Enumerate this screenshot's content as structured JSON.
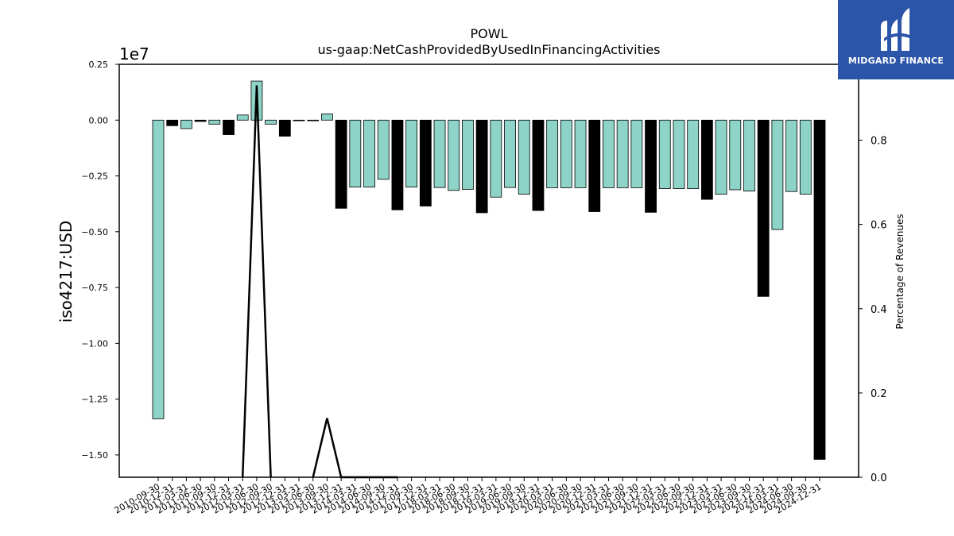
{
  "brand": {
    "name": "MIDGARD FINANCE",
    "accent": "#2b55a8"
  },
  "chart_data": {
    "type": "bar",
    "title": "POWL",
    "subtitle": "us-gaap:NetCashProvidedByUsedInFinancingActivities",
    "ylabel": "iso4217:USD",
    "y2label": "Percentage of Revenues",
    "offset_text": "1e7",
    "ylim": [
      -16000000,
      2500000
    ],
    "y2lim": [
      0,
      0.98
    ],
    "yticks": [
      0.25,
      0.0,
      -0.25,
      -0.5,
      -0.75,
      -1.0,
      -1.25,
      -1.5
    ],
    "ytick_labels": [
      "0.25",
      "0.00",
      "−0.25",
      "−0.50",
      "−0.75",
      "−1.00",
      "−1.25",
      "−1.50"
    ],
    "y2ticks": [
      0.0,
      0.2,
      0.4,
      0.6,
      0.8
    ],
    "y2tick_labels": [
      "0.0",
      "0.2",
      "0.4",
      "0.6",
      "0.8"
    ],
    "bar_colors": {
      "default": "#8dd3c7",
      "fiscal_year_end": "#000000"
    },
    "categories": [
      "2010-09-30",
      "2010-12-31",
      "2011-03-31",
      "2011-06-30",
      "2011-09-30",
      "2011-12-31",
      "2012-03-31",
      "2012-06-30",
      "2012-09-30",
      "2012-12-31",
      "2013-03-31",
      "2013-06-30",
      "2013-09-30",
      "2013-12-31",
      "2014-03-31",
      "2014-06-30",
      "2014-09-30",
      "2014-12-31",
      "2017-09-30",
      "2017-12-31",
      "2018-03-31",
      "2018-06-30",
      "2018-09-30",
      "2018-12-31",
      "2019-03-31",
      "2019-06-30",
      "2019-09-30",
      "2019-12-31",
      "2020-03-31",
      "2020-06-30",
      "2020-09-30",
      "2020-12-31",
      "2021-03-31",
      "2021-06-30",
      "2021-09-30",
      "2021-12-31",
      "2022-03-31",
      "2022-06-30",
      "2022-09-30",
      "2022-12-31",
      "2023-03-31",
      "2023-06-30",
      "2023-09-30",
      "2023-12-31",
      "2024-03-31",
      "2024-06-30",
      "2024-09-30",
      "2024-12-31"
    ],
    "values": [
      -13380000,
      -250000,
      -380000,
      -60000,
      -180000,
      -650000,
      230000,
      1750000,
      -180000,
      -720000,
      -30000,
      -30000,
      280000,
      -3950000,
      -3000000,
      -3000000,
      -2650000,
      -4020000,
      -3000000,
      -3850000,
      -3020000,
      -3150000,
      -3100000,
      -4150000,
      -3450000,
      -3020000,
      -3320000,
      -4050000,
      -3030000,
      -3030000,
      -3030000,
      -4100000,
      -3030000,
      -3030000,
      -3030000,
      -4130000,
      -3070000,
      -3070000,
      -3070000,
      -3550000,
      -3320000,
      -3120000,
      -3180000,
      -7900000,
      -4900000,
      -3200000,
      -3320000,
      -15200000
    ],
    "highlight": [
      false,
      true,
      false,
      true,
      false,
      true,
      false,
      false,
      false,
      true,
      false,
      false,
      false,
      true,
      false,
      false,
      false,
      true,
      false,
      true,
      false,
      false,
      false,
      true,
      false,
      false,
      false,
      true,
      false,
      false,
      false,
      true,
      false,
      false,
      false,
      true,
      false,
      false,
      false,
      true,
      false,
      false,
      false,
      true,
      false,
      false,
      false,
      true
    ],
    "line_series": {
      "name": "Percentage of Revenues",
      "values": [
        0.0,
        null,
        null,
        null,
        null,
        null,
        0.0,
        0.93,
        0.0,
        null,
        null,
        0.0,
        0.14,
        0.0,
        0.0,
        0.0,
        0.0,
        0.0,
        null,
        null,
        null,
        null,
        null,
        null,
        null,
        null,
        null,
        null,
        null,
        null,
        null,
        null,
        null,
        null,
        null,
        null,
        null,
        null,
        null,
        null,
        null,
        null,
        null,
        null,
        null,
        null,
        null,
        null
      ],
      "color": "#000000"
    }
  }
}
